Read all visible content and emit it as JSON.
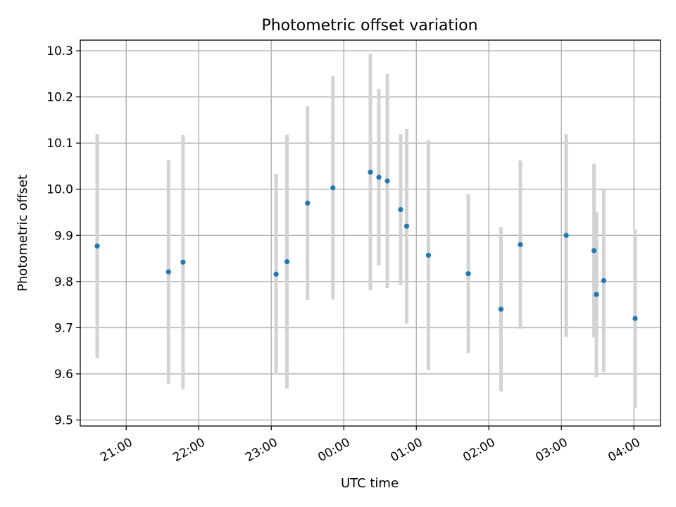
{
  "chart_data": {
    "type": "scatter",
    "title": "Photometric offset variation",
    "xlabel": "UTC time",
    "ylabel": "Photometric offset",
    "x_unit": "datetime (UTC)",
    "xlim": [
      "20:22",
      "04:22"
    ],
    "x_ticks": [
      "21:00",
      "22:00",
      "23:00",
      "00:00",
      "01:00",
      "02:00",
      "03:00",
      "04:00"
    ],
    "ylim": [
      9.487,
      10.323
    ],
    "y_ticks": [
      "9.5",
      "9.6",
      "9.7",
      "9.8",
      "9.9",
      "10.0",
      "10.1",
      "10.2",
      "10.3"
    ],
    "grid": true,
    "series": [
      {
        "marker_color": "#1f77b4",
        "errorbar_color": "#d3d3d3",
        "points": [
          {
            "x": "20:36",
            "y": 9.877,
            "err": 0.243
          },
          {
            "x": "21:35",
            "y": 9.821,
            "err": 0.242
          },
          {
            "x": "21:47",
            "y": 9.842,
            "err": 0.275
          },
          {
            "x": "23:04",
            "y": 9.816,
            "err": 0.217
          },
          {
            "x": "23:13",
            "y": 9.843,
            "err": 0.275
          },
          {
            "x": "23:30",
            "y": 9.97,
            "err": 0.21
          },
          {
            "x": "23:51",
            "y": 10.003,
            "err": 0.242
          },
          {
            "x": "00:22",
            "y": 10.037,
            "err": 0.256
          },
          {
            "x": "00:29",
            "y": 10.026,
            "err": 0.191
          },
          {
            "x": "00:36",
            "y": 10.018,
            "err": 0.232
          },
          {
            "x": "00:47",
            "y": 9.956,
            "err": 0.164
          },
          {
            "x": "00:52",
            "y": 9.92,
            "err": 0.211
          },
          {
            "x": "01:10",
            "y": 9.857,
            "err": 0.249
          },
          {
            "x": "01:43",
            "y": 9.817,
            "err": 0.172
          },
          {
            "x": "02:10",
            "y": 9.74,
            "err": 0.178
          },
          {
            "x": "02:26",
            "y": 9.88,
            "err": 0.182
          },
          {
            "x": "03:04",
            "y": 9.9,
            "err": 0.22
          },
          {
            "x": "03:27",
            "y": 9.867,
            "err": 0.188
          },
          {
            "x": "03:29",
            "y": 9.772,
            "err": 0.179
          },
          {
            "x": "03:35",
            "y": 9.802,
            "err": 0.198
          },
          {
            "x": "04:01",
            "y": 9.72,
            "err": 0.194
          }
        ]
      }
    ]
  }
}
